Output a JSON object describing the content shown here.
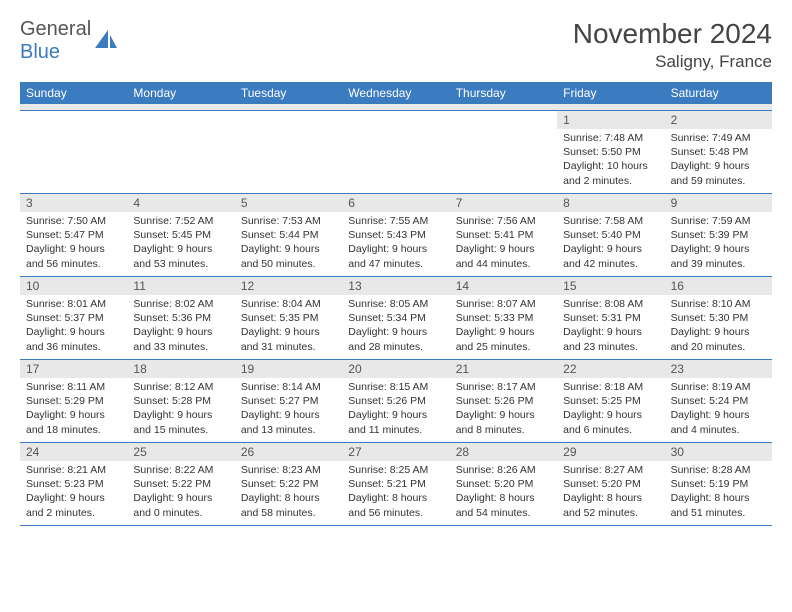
{
  "logo": {
    "word1": "General",
    "word2": "Blue"
  },
  "title": "November 2024",
  "location": "Saligny, France",
  "colors": {
    "accent": "#3b7bbf",
    "header_text": "#444444",
    "body_text": "#333333",
    "daynum_bg": "#e8e8e8",
    "logo_gray": "#555555"
  },
  "weekdays": [
    "Sunday",
    "Monday",
    "Tuesday",
    "Wednesday",
    "Thursday",
    "Friday",
    "Saturday"
  ],
  "weeks": [
    [
      {
        "n": "",
        "sunrise": "",
        "sunset": "",
        "daylight": ""
      },
      {
        "n": "",
        "sunrise": "",
        "sunset": "",
        "daylight": ""
      },
      {
        "n": "",
        "sunrise": "",
        "sunset": "",
        "daylight": ""
      },
      {
        "n": "",
        "sunrise": "",
        "sunset": "",
        "daylight": ""
      },
      {
        "n": "",
        "sunrise": "",
        "sunset": "",
        "daylight": ""
      },
      {
        "n": "1",
        "sunrise": "7:48 AM",
        "sunset": "5:50 PM",
        "daylight": "10 hours and 2 minutes."
      },
      {
        "n": "2",
        "sunrise": "7:49 AM",
        "sunset": "5:48 PM",
        "daylight": "9 hours and 59 minutes."
      }
    ],
    [
      {
        "n": "3",
        "sunrise": "7:50 AM",
        "sunset": "5:47 PM",
        "daylight": "9 hours and 56 minutes."
      },
      {
        "n": "4",
        "sunrise": "7:52 AM",
        "sunset": "5:45 PM",
        "daylight": "9 hours and 53 minutes."
      },
      {
        "n": "5",
        "sunrise": "7:53 AM",
        "sunset": "5:44 PM",
        "daylight": "9 hours and 50 minutes."
      },
      {
        "n": "6",
        "sunrise": "7:55 AM",
        "sunset": "5:43 PM",
        "daylight": "9 hours and 47 minutes."
      },
      {
        "n": "7",
        "sunrise": "7:56 AM",
        "sunset": "5:41 PM",
        "daylight": "9 hours and 44 minutes."
      },
      {
        "n": "8",
        "sunrise": "7:58 AM",
        "sunset": "5:40 PM",
        "daylight": "9 hours and 42 minutes."
      },
      {
        "n": "9",
        "sunrise": "7:59 AM",
        "sunset": "5:39 PM",
        "daylight": "9 hours and 39 minutes."
      }
    ],
    [
      {
        "n": "10",
        "sunrise": "8:01 AM",
        "sunset": "5:37 PM",
        "daylight": "9 hours and 36 minutes."
      },
      {
        "n": "11",
        "sunrise": "8:02 AM",
        "sunset": "5:36 PM",
        "daylight": "9 hours and 33 minutes."
      },
      {
        "n": "12",
        "sunrise": "8:04 AM",
        "sunset": "5:35 PM",
        "daylight": "9 hours and 31 minutes."
      },
      {
        "n": "13",
        "sunrise": "8:05 AM",
        "sunset": "5:34 PM",
        "daylight": "9 hours and 28 minutes."
      },
      {
        "n": "14",
        "sunrise": "8:07 AM",
        "sunset": "5:33 PM",
        "daylight": "9 hours and 25 minutes."
      },
      {
        "n": "15",
        "sunrise": "8:08 AM",
        "sunset": "5:31 PM",
        "daylight": "9 hours and 23 minutes."
      },
      {
        "n": "16",
        "sunrise": "8:10 AM",
        "sunset": "5:30 PM",
        "daylight": "9 hours and 20 minutes."
      }
    ],
    [
      {
        "n": "17",
        "sunrise": "8:11 AM",
        "sunset": "5:29 PM",
        "daylight": "9 hours and 18 minutes."
      },
      {
        "n": "18",
        "sunrise": "8:12 AM",
        "sunset": "5:28 PM",
        "daylight": "9 hours and 15 minutes."
      },
      {
        "n": "19",
        "sunrise": "8:14 AM",
        "sunset": "5:27 PM",
        "daylight": "9 hours and 13 minutes."
      },
      {
        "n": "20",
        "sunrise": "8:15 AM",
        "sunset": "5:26 PM",
        "daylight": "9 hours and 11 minutes."
      },
      {
        "n": "21",
        "sunrise": "8:17 AM",
        "sunset": "5:26 PM",
        "daylight": "9 hours and 8 minutes."
      },
      {
        "n": "22",
        "sunrise": "8:18 AM",
        "sunset": "5:25 PM",
        "daylight": "9 hours and 6 minutes."
      },
      {
        "n": "23",
        "sunrise": "8:19 AM",
        "sunset": "5:24 PM",
        "daylight": "9 hours and 4 minutes."
      }
    ],
    [
      {
        "n": "24",
        "sunrise": "8:21 AM",
        "sunset": "5:23 PM",
        "daylight": "9 hours and 2 minutes."
      },
      {
        "n": "25",
        "sunrise": "8:22 AM",
        "sunset": "5:22 PM",
        "daylight": "9 hours and 0 minutes."
      },
      {
        "n": "26",
        "sunrise": "8:23 AM",
        "sunset": "5:22 PM",
        "daylight": "8 hours and 58 minutes."
      },
      {
        "n": "27",
        "sunrise": "8:25 AM",
        "sunset": "5:21 PM",
        "daylight": "8 hours and 56 minutes."
      },
      {
        "n": "28",
        "sunrise": "8:26 AM",
        "sunset": "5:20 PM",
        "daylight": "8 hours and 54 minutes."
      },
      {
        "n": "29",
        "sunrise": "8:27 AM",
        "sunset": "5:20 PM",
        "daylight": "8 hours and 52 minutes."
      },
      {
        "n": "30",
        "sunrise": "8:28 AM",
        "sunset": "5:19 PM",
        "daylight": "8 hours and 51 minutes."
      }
    ]
  ],
  "labels": {
    "sunrise": "Sunrise:",
    "sunset": "Sunset:",
    "daylight": "Daylight:"
  }
}
